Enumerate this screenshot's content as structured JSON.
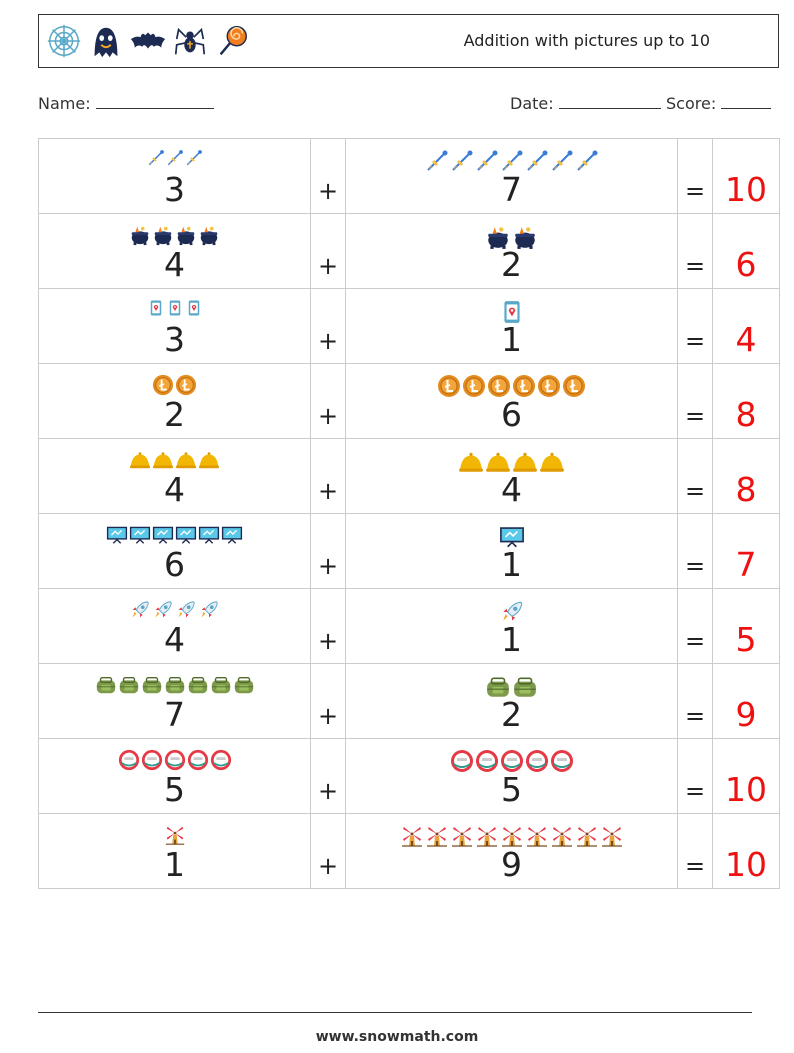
{
  "header": {
    "title": "Addition with pictures up to 10",
    "icons": [
      "spider-web-icon",
      "ghost-icon",
      "bat-icon",
      "spider-icon",
      "lollipop-icon"
    ]
  },
  "info": {
    "name_label": "Name:",
    "date_label": "Date:",
    "score_label": "Score:"
  },
  "problems": [
    {
      "a": "3",
      "b": "7",
      "plus": "+",
      "eq": "=",
      "answer": "10",
      "icon": "darts-icon"
    },
    {
      "a": "4",
      "b": "2",
      "plus": "+",
      "eq": "=",
      "answer": "6",
      "icon": "cauldron-icon"
    },
    {
      "a": "3",
      "b": "1",
      "plus": "+",
      "eq": "=",
      "answer": "4",
      "icon": "phone-location-icon"
    },
    {
      "a": "2",
      "b": "6",
      "plus": "+",
      "eq": "=",
      "answer": "8",
      "icon": "litecoin-icon"
    },
    {
      "a": "4",
      "b": "4",
      "plus": "+",
      "eq": "=",
      "answer": "8",
      "icon": "bell-icon"
    },
    {
      "a": "6",
      "b": "1",
      "plus": "+",
      "eq": "=",
      "answer": "7",
      "icon": "monitor-icon"
    },
    {
      "a": "4",
      "b": "1",
      "plus": "+",
      "eq": "=",
      "answer": "5",
      "icon": "rocket-icon"
    },
    {
      "a": "7",
      "b": "2",
      "plus": "+",
      "eq": "=",
      "answer": "9",
      "icon": "backpack-icon"
    },
    {
      "a": "5",
      "b": "5",
      "plus": "+",
      "eq": "=",
      "answer": "10",
      "icon": "speed-limit-sign-icon"
    },
    {
      "a": "1",
      "b": "9",
      "plus": "+",
      "eq": "=",
      "answer": "10",
      "icon": "windmill-icon"
    }
  ],
  "footer": {
    "url": "www.snowmath.com"
  }
}
